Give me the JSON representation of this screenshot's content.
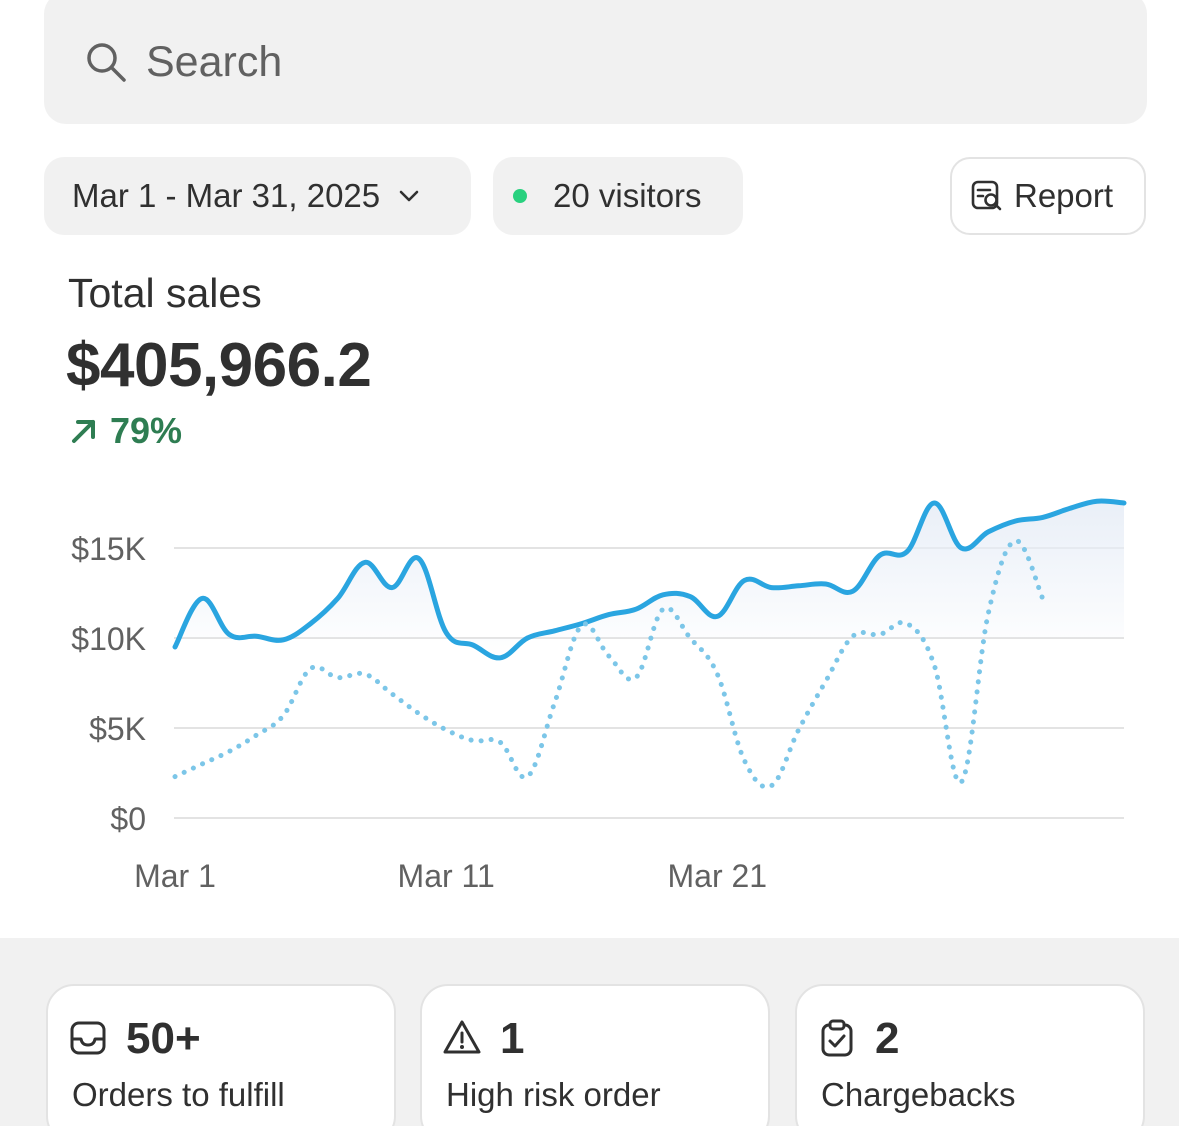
{
  "search": {
    "placeholder": "Search"
  },
  "filters": {
    "date_range": "Mar 1 - Mar 31, 2025",
    "visitors": "20 visitors",
    "visitors_dot_color": "#29d17f",
    "report_label": "Report"
  },
  "metric": {
    "label": "Total sales",
    "value": "$405,966.2",
    "change": "79%",
    "change_direction": "up",
    "change_color": "#2e7d52"
  },
  "chart_data": {
    "type": "line",
    "title": "",
    "xlabel": "",
    "ylabel": "",
    "x_tick_labels": [
      "Mar 1",
      "Mar 11",
      "Mar 21"
    ],
    "y_tick_labels": [
      "$0",
      "$5K",
      "$10K",
      "$15K"
    ],
    "ylim": [
      0,
      15000
    ],
    "grid": true,
    "series": [
      {
        "style": "solid",
        "color": "#2aa5e0",
        "fill": true,
        "points": [
          [
            1,
            9500
          ],
          [
            1.5,
            12200
          ],
          [
            2,
            10200
          ],
          [
            2.5,
            10100
          ],
          [
            3,
            9900
          ],
          [
            3.5,
            10800
          ],
          [
            4,
            12200
          ],
          [
            4.5,
            14200
          ],
          [
            5,
            12800
          ],
          [
            5.5,
            14400
          ],
          [
            6,
            10300
          ],
          [
            6.5,
            9600
          ],
          [
            7,
            8900
          ],
          [
            7.5,
            10000
          ],
          [
            8,
            10400
          ],
          [
            8.5,
            10800
          ],
          [
            9,
            11300
          ],
          [
            9.5,
            11600
          ],
          [
            10,
            12400
          ],
          [
            10.5,
            12300
          ],
          [
            11,
            11200
          ],
          [
            11.5,
            13200
          ],
          [
            12,
            12800
          ],
          [
            12.5,
            12900
          ],
          [
            13,
            13000
          ],
          [
            13.5,
            12600
          ],
          [
            14,
            14600
          ],
          [
            14.5,
            14800
          ],
          [
            15,
            17500
          ],
          [
            15.5,
            15000
          ],
          [
            16,
            15900
          ],
          [
            16.5,
            16500
          ],
          [
            17,
            16700
          ],
          [
            17.5,
            17200
          ],
          [
            18,
            17600
          ],
          [
            18.5,
            17500
          ]
        ]
      },
      {
        "style": "dotted",
        "color": "#7cc6e8",
        "fill": false,
        "points": [
          [
            1,
            2300
          ],
          [
            1.5,
            3000
          ],
          [
            2,
            3700
          ],
          [
            2.5,
            4600
          ],
          [
            3,
            5700
          ],
          [
            3.5,
            8300
          ],
          [
            4,
            7800
          ],
          [
            4.5,
            8000
          ],
          [
            5,
            6900
          ],
          [
            5.5,
            5800
          ],
          [
            6,
            4900
          ],
          [
            6.5,
            4300
          ],
          [
            7,
            4200
          ],
          [
            7.5,
            2300
          ],
          [
            8,
            6400
          ],
          [
            8.5,
            10700
          ],
          [
            9,
            9000
          ],
          [
            9.5,
            7800
          ],
          [
            10,
            11600
          ],
          [
            10.5,
            10000
          ],
          [
            11,
            8000
          ],
          [
            11.5,
            3200
          ],
          [
            12,
            1800
          ],
          [
            12.5,
            4900
          ],
          [
            13,
            7600
          ],
          [
            13.5,
            10100
          ],
          [
            14,
            10200
          ],
          [
            14.5,
            10800
          ],
          [
            15,
            8500
          ],
          [
            15.5,
            2000
          ],
          [
            16,
            11400
          ],
          [
            16.5,
            15400
          ],
          [
            17,
            12200
          ]
        ]
      }
    ]
  },
  "cards": [
    {
      "icon": "inbox-icon",
      "count": "50+",
      "label": "Orders to fulfill"
    },
    {
      "icon": "warning-icon",
      "count": "1",
      "label": "High risk order"
    },
    {
      "icon": "clipboard-check-icon",
      "count": "2",
      "label": "Chargebacks"
    }
  ]
}
